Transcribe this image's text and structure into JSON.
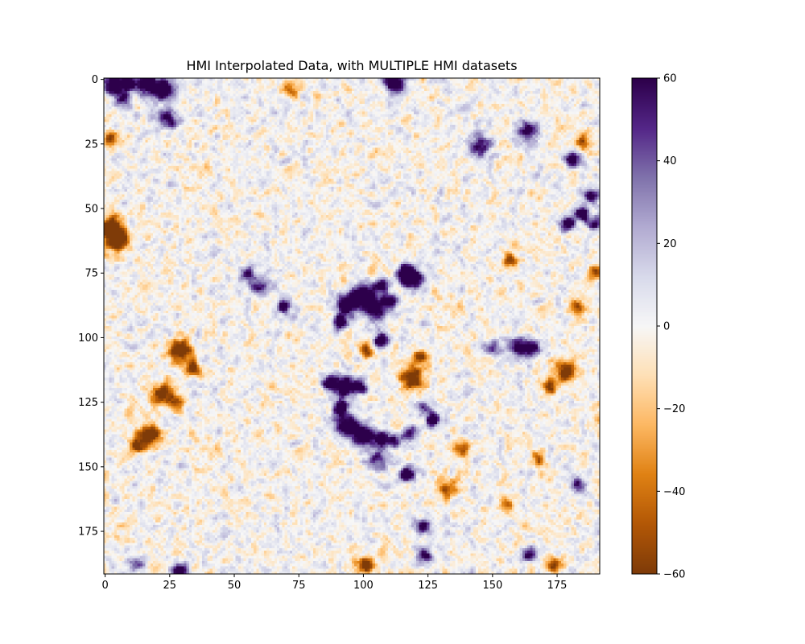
{
  "chart_data": {
    "type": "heatmap",
    "title": "HMI Interpolated Data, with MULTIPLE HMI datasets",
    "xlabel": "",
    "ylabel": "",
    "grid_shape": [
      192,
      192
    ],
    "xlim": [
      -0.5,
      191.5
    ],
    "ylim": [
      191.5,
      -0.5
    ],
    "x_ticks": [
      0,
      25,
      50,
      75,
      100,
      125,
      150,
      175
    ],
    "y_ticks": [
      0,
      25,
      50,
      75,
      100,
      125,
      150,
      175
    ],
    "colormap": "PuOr",
    "color_range": [
      -60,
      60
    ],
    "colorbar_ticks": [
      60,
      40,
      20,
      0,
      -20,
      -40,
      -60
    ],
    "colorbar_tick_labels": [
      "60",
      "40",
      "20",
      "0",
      "−20",
      "−40",
      "−60"
    ],
    "colormap_stops": [
      "#2d004b",
      "#542788",
      "#8073ac",
      "#b2abd2",
      "#d8daeb",
      "#f7f7f7",
      "#fee0b6",
      "#fdb863",
      "#e08214",
      "#b35806",
      "#7f3b08"
    ],
    "background_noise_std": 12,
    "features": [
      {
        "x": 3,
        "y": 2,
        "value": 60,
        "radius": 3
      },
      {
        "x": 9,
        "y": 2,
        "value": 55,
        "radius": 2
      },
      {
        "x": 16,
        "y": 2,
        "value": 60,
        "radius": 3
      },
      {
        "x": 23,
        "y": 4,
        "value": 60,
        "radius": 3
      },
      {
        "x": 7,
        "y": 8,
        "value": 40,
        "radius": 2
      },
      {
        "x": 24,
        "y": 15,
        "value": 40,
        "radius": 3
      },
      {
        "x": 112,
        "y": 1,
        "value": 60,
        "radius": 3
      },
      {
        "x": 72,
        "y": 4,
        "value": -40,
        "radius": 2
      },
      {
        "x": 2,
        "y": 23,
        "value": -45,
        "radius": 2
      },
      {
        "x": 2,
        "y": 57,
        "value": -60,
        "radius": 3
      },
      {
        "x": 5,
        "y": 62,
        "value": -60,
        "radius": 3
      },
      {
        "x": 164,
        "y": 20,
        "value": 40,
        "radius": 3
      },
      {
        "x": 145,
        "y": 26,
        "value": 45,
        "radius": 3
      },
      {
        "x": 181,
        "y": 31,
        "value": 60,
        "radius": 2
      },
      {
        "x": 188,
        "y": 45,
        "value": 60,
        "radius": 2
      },
      {
        "x": 185,
        "y": 52,
        "value": 60,
        "radius": 2
      },
      {
        "x": 179,
        "y": 56,
        "value": 60,
        "radius": 2
      },
      {
        "x": 190,
        "y": 56,
        "value": 45,
        "radius": 2
      },
      {
        "x": 185,
        "y": 24,
        "value": -40,
        "radius": 2
      },
      {
        "x": 116,
        "y": 75,
        "value": 60,
        "radius": 2
      },
      {
        "x": 119,
        "y": 77,
        "value": 60,
        "radius": 3
      },
      {
        "x": 107,
        "y": 80,
        "value": 55,
        "radius": 2
      },
      {
        "x": 110,
        "y": 86,
        "value": 55,
        "radius": 2
      },
      {
        "x": 100,
        "y": 83,
        "value": 60,
        "radius": 3
      },
      {
        "x": 94,
        "y": 87,
        "value": 60,
        "radius": 3
      },
      {
        "x": 104,
        "y": 89,
        "value": 60,
        "radius": 3
      },
      {
        "x": 91,
        "y": 94,
        "value": 60,
        "radius": 2
      },
      {
        "x": 107,
        "y": 101,
        "value": 60,
        "radius": 2
      },
      {
        "x": 69,
        "y": 88,
        "value": 50,
        "radius": 2
      },
      {
        "x": 60,
        "y": 80,
        "value": 35,
        "radius": 3
      },
      {
        "x": 55,
        "y": 75,
        "value": 45,
        "radius": 2
      },
      {
        "x": 93,
        "y": 119,
        "value": 60,
        "radius": 3
      },
      {
        "x": 87,
        "y": 117,
        "value": 60,
        "radius": 2
      },
      {
        "x": 99,
        "y": 119,
        "value": 55,
        "radius": 2
      },
      {
        "x": 91,
        "y": 127,
        "value": 60,
        "radius": 2
      },
      {
        "x": 93,
        "y": 134,
        "value": 60,
        "radius": 3
      },
      {
        "x": 100,
        "y": 138,
        "value": 60,
        "radius": 3
      },
      {
        "x": 107,
        "y": 139,
        "value": 60,
        "radius": 2
      },
      {
        "x": 112,
        "y": 140,
        "value": 45,
        "radius": 2
      },
      {
        "x": 118,
        "y": 137,
        "value": 45,
        "radius": 2
      },
      {
        "x": 127,
        "y": 132,
        "value": 60,
        "radius": 2
      },
      {
        "x": 123,
        "y": 127,
        "value": 40,
        "radius": 2
      },
      {
        "x": 117,
        "y": 153,
        "value": 60,
        "radius": 2
      },
      {
        "x": 123,
        "y": 173,
        "value": 60,
        "radius": 2
      },
      {
        "x": 105,
        "y": 147,
        "value": 35,
        "radius": 3
      },
      {
        "x": 119,
        "y": 116,
        "value": -60,
        "radius": 3
      },
      {
        "x": 122,
        "y": 108,
        "value": -45,
        "radius": 2
      },
      {
        "x": 29,
        "y": 105,
        "value": -60,
        "radius": 3
      },
      {
        "x": 34,
        "y": 112,
        "value": -55,
        "radius": 2
      },
      {
        "x": 22,
        "y": 122,
        "value": -50,
        "radius": 3
      },
      {
        "x": 28,
        "y": 125,
        "value": -40,
        "radius": 2
      },
      {
        "x": 17,
        "y": 138,
        "value": -60,
        "radius": 3
      },
      {
        "x": 12,
        "y": 142,
        "value": -45,
        "radius": 2
      },
      {
        "x": 101,
        "y": 105,
        "value": -40,
        "radius": 2
      },
      {
        "x": 160,
        "y": 104,
        "value": 50,
        "radius": 3
      },
      {
        "x": 166,
        "y": 104,
        "value": 45,
        "radius": 2
      },
      {
        "x": 150,
        "y": 104,
        "value": 35,
        "radius": 2
      },
      {
        "x": 178,
        "y": 113,
        "value": -55,
        "radius": 3
      },
      {
        "x": 172,
        "y": 119,
        "value": -45,
        "radius": 2
      },
      {
        "x": 183,
        "y": 88,
        "value": -35,
        "radius": 2
      },
      {
        "x": 190,
        "y": 75,
        "value": -45,
        "radius": 2
      },
      {
        "x": 157,
        "y": 70,
        "value": -35,
        "radius": 2
      },
      {
        "x": 168,
        "y": 147,
        "value": -40,
        "radius": 2
      },
      {
        "x": 138,
        "y": 143,
        "value": -40,
        "radius": 2
      },
      {
        "x": 133,
        "y": 158,
        "value": -35,
        "radius": 3
      },
      {
        "x": 156,
        "y": 165,
        "value": -35,
        "radius": 2
      },
      {
        "x": 101,
        "y": 188,
        "value": -60,
        "radius": 2
      },
      {
        "x": 174,
        "y": 188,
        "value": -45,
        "radius": 2
      },
      {
        "x": 29,
        "y": 190,
        "value": 60,
        "radius": 2
      },
      {
        "x": 124,
        "y": 184,
        "value": 45,
        "radius": 2
      },
      {
        "x": 164,
        "y": 184,
        "value": 45,
        "radius": 2
      },
      {
        "x": 183,
        "y": 157,
        "value": 45,
        "radius": 2
      },
      {
        "x": 12,
        "y": 188,
        "value": 35,
        "radius": 2
      }
    ]
  }
}
